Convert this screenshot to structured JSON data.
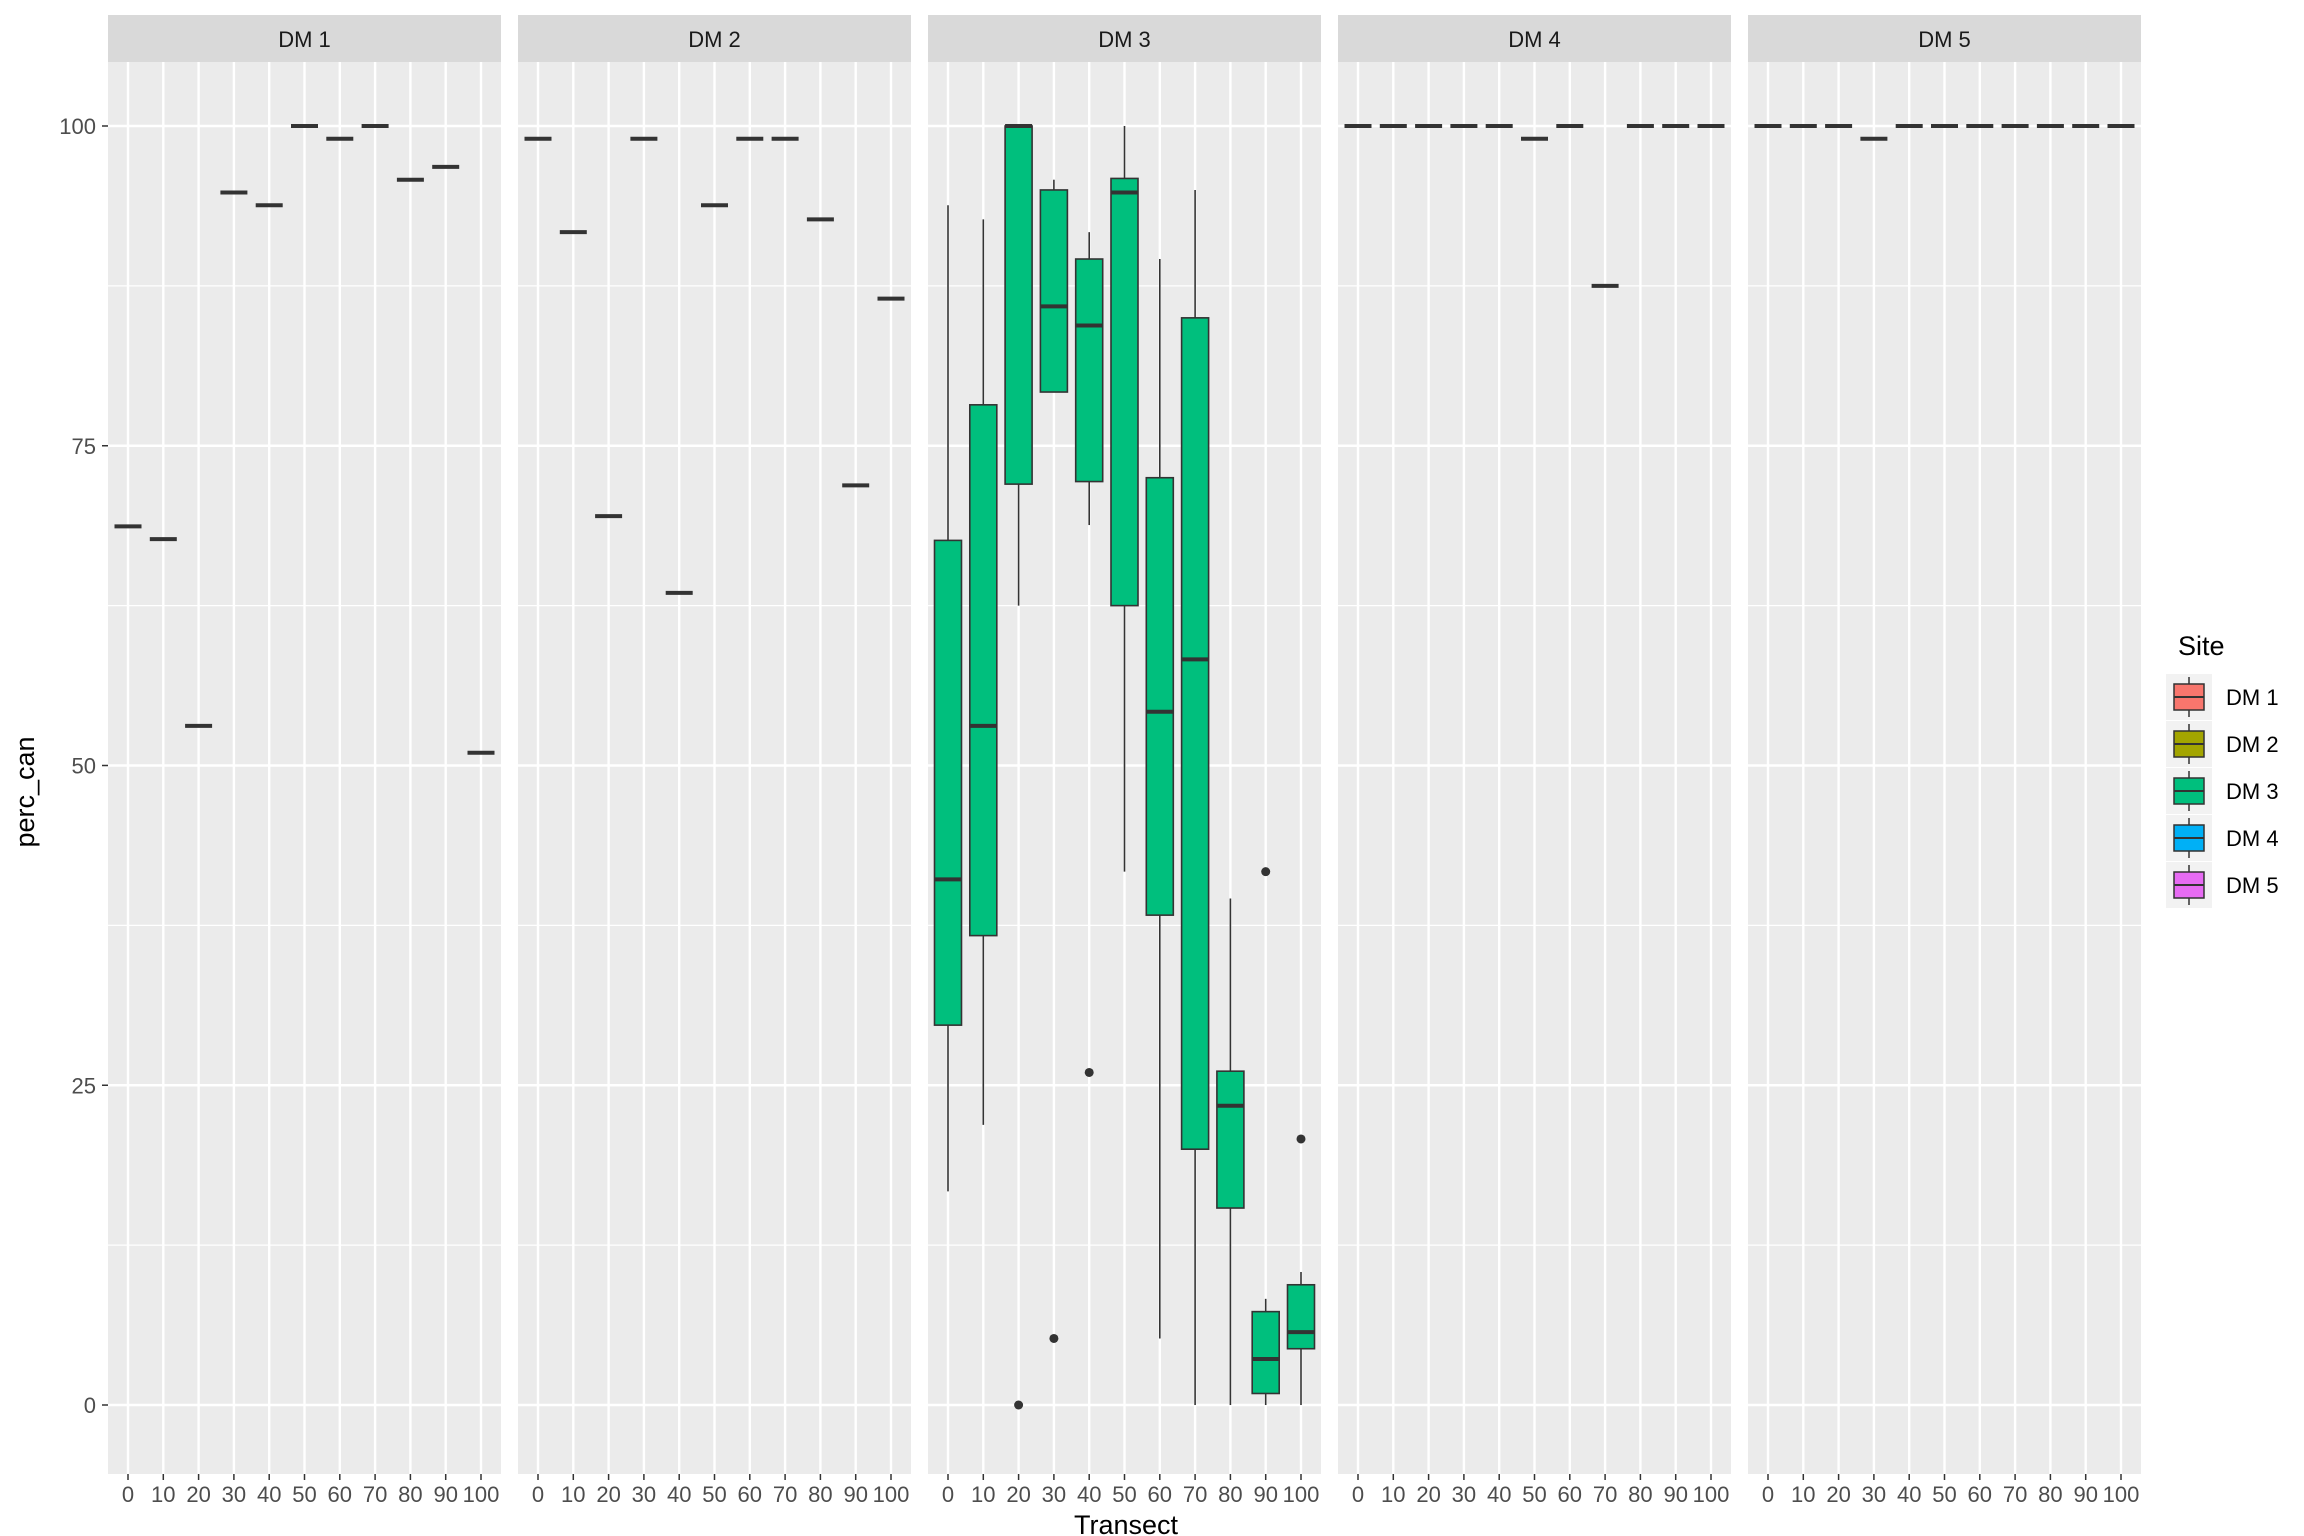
{
  "chart_data": {
    "type": "boxplot",
    "xlabel": "Transect",
    "ylabel": "perc_can",
    "ylim": [
      -5,
      105
    ],
    "y_ticks": [
      0,
      25,
      50,
      75,
      100
    ],
    "categories": [
      "0",
      "10",
      "20",
      "30",
      "40",
      "50",
      "60",
      "70",
      "80",
      "90",
      "100"
    ],
    "grid": true,
    "legend": {
      "title": "Site",
      "position": "right",
      "entries": [
        {
          "label": "DM 1",
          "color": "#F8766D"
        },
        {
          "label": "DM 2",
          "color": "#A3A500"
        },
        {
          "label": "DM 3",
          "color": "#00BF7D"
        },
        {
          "label": "DM 4",
          "color": "#00B0F6"
        },
        {
          "label": "DM 5",
          "color": "#E76BF3"
        }
      ]
    },
    "panels": [
      {
        "name": "DM 1",
        "boxes": [
          {
            "x": "0",
            "lower": 68.7,
            "q1": 68.7,
            "median": 68.7,
            "q3": 68.7,
            "upper": 68.7,
            "outliers": []
          },
          {
            "x": "10",
            "lower": 67.7,
            "q1": 67.7,
            "median": 67.7,
            "q3": 67.7,
            "upper": 67.7,
            "outliers": []
          },
          {
            "x": "20",
            "lower": 53.1,
            "q1": 53.1,
            "median": 53.1,
            "q3": 53.1,
            "upper": 53.1,
            "outliers": []
          },
          {
            "x": "30",
            "lower": 94.8,
            "q1": 94.8,
            "median": 94.8,
            "q3": 94.8,
            "upper": 94.8,
            "outliers": []
          },
          {
            "x": "40",
            "lower": 93.8,
            "q1": 93.8,
            "median": 93.8,
            "q3": 93.8,
            "upper": 93.8,
            "outliers": []
          },
          {
            "x": "50",
            "lower": 100,
            "q1": 100,
            "median": 100,
            "q3": 100,
            "upper": 100,
            "outliers": []
          },
          {
            "x": "60",
            "lower": 99,
            "q1": 99,
            "median": 99,
            "q3": 99,
            "upper": 99,
            "outliers": []
          },
          {
            "x": "70",
            "lower": 100,
            "q1": 100,
            "median": 100,
            "q3": 100,
            "upper": 100,
            "outliers": []
          },
          {
            "x": "80",
            "lower": 95.8,
            "q1": 95.8,
            "median": 95.8,
            "q3": 95.8,
            "upper": 95.8,
            "outliers": []
          },
          {
            "x": "90",
            "lower": 96.8,
            "q1": 96.8,
            "median": 96.8,
            "q3": 96.8,
            "upper": 96.8,
            "outliers": []
          },
          {
            "x": "100",
            "lower": 51,
            "q1": 51,
            "median": 51,
            "q3": 51,
            "upper": 51,
            "outliers": []
          }
        ]
      },
      {
        "name": "DM 2",
        "boxes": [
          {
            "x": "0",
            "lower": 99,
            "q1": 99,
            "median": 99,
            "q3": 99,
            "upper": 99,
            "outliers": []
          },
          {
            "x": "10",
            "lower": 91.7,
            "q1": 91.7,
            "median": 91.7,
            "q3": 91.7,
            "upper": 91.7,
            "outliers": []
          },
          {
            "x": "20",
            "lower": 69.5,
            "q1": 69.5,
            "median": 69.5,
            "q3": 69.5,
            "upper": 69.5,
            "outliers": []
          },
          {
            "x": "30",
            "lower": 99,
            "q1": 99,
            "median": 99,
            "q3": 99,
            "upper": 99,
            "outliers": []
          },
          {
            "x": "40",
            "lower": 63.5,
            "q1": 63.5,
            "median": 63.5,
            "q3": 63.5,
            "upper": 63.5,
            "outliers": []
          },
          {
            "x": "50",
            "lower": 93.8,
            "q1": 93.8,
            "median": 93.8,
            "q3": 93.8,
            "upper": 93.8,
            "outliers": []
          },
          {
            "x": "60",
            "lower": 99,
            "q1": 99,
            "median": 99,
            "q3": 99,
            "upper": 99,
            "outliers": []
          },
          {
            "x": "70",
            "lower": 99,
            "q1": 99,
            "median": 99,
            "q3": 99,
            "upper": 99,
            "outliers": []
          },
          {
            "x": "80",
            "lower": 92.7,
            "q1": 92.7,
            "median": 92.7,
            "q3": 92.7,
            "upper": 92.7,
            "outliers": []
          },
          {
            "x": "90",
            "lower": 71.9,
            "q1": 71.9,
            "median": 71.9,
            "q3": 71.9,
            "upper": 71.9,
            "outliers": []
          },
          {
            "x": "100",
            "lower": 86.5,
            "q1": 86.5,
            "median": 86.5,
            "q3": 86.5,
            "upper": 86.5,
            "outliers": []
          }
        ]
      },
      {
        "name": "DM 3",
        "boxes": [
          {
            "x": "0",
            "lower": 16.7,
            "q1": 29.7,
            "median": 41.1,
            "q3": 67.6,
            "upper": 93.8,
            "outliers": []
          },
          {
            "x": "10",
            "lower": 21.9,
            "q1": 36.7,
            "median": 53.1,
            "q3": 78.2,
            "upper": 92.7,
            "outliers": []
          },
          {
            "x": "20",
            "lower": 62.5,
            "q1": 72.0,
            "median": 100,
            "q3": 100,
            "upper": 100,
            "outliers": [
              0
            ]
          },
          {
            "x": "30",
            "lower": 79.2,
            "q1": 79.2,
            "median": 85.9,
            "q3": 95.0,
            "upper": 95.8,
            "outliers": [
              5.2
            ]
          },
          {
            "x": "40",
            "lower": 68.8,
            "q1": 72.2,
            "median": 84.4,
            "q3": 89.6,
            "upper": 91.7,
            "outliers": [
              26.0
            ]
          },
          {
            "x": "50",
            "lower": 41.7,
            "q1": 62.5,
            "median": 94.8,
            "q3": 95.9,
            "upper": 100,
            "outliers": []
          },
          {
            "x": "60",
            "lower": 5.2,
            "q1": 38.3,
            "median": 54.2,
            "q3": 72.5,
            "upper": 89.6,
            "outliers": []
          },
          {
            "x": "70",
            "lower": 0,
            "q1": 20.0,
            "median": 58.3,
            "q3": 85.0,
            "upper": 95.0,
            "outliers": []
          },
          {
            "x": "80",
            "lower": 0,
            "q1": 15.4,
            "median": 23.4,
            "q3": 26.1,
            "upper": 39.6,
            "outliers": []
          },
          {
            "x": "90",
            "lower": 0,
            "q1": 0.9,
            "median": 3.6,
            "q3": 7.3,
            "upper": 8.3,
            "outliers": [
              41.7
            ]
          },
          {
            "x": "100",
            "lower": 0,
            "q1": 4.4,
            "median": 5.7,
            "q3": 9.4,
            "upper": 10.4,
            "outliers": [
              20.8
            ]
          }
        ]
      },
      {
        "name": "DM 4",
        "boxes": [
          {
            "x": "0",
            "lower": 100,
            "q1": 100,
            "median": 100,
            "q3": 100,
            "upper": 100,
            "outliers": []
          },
          {
            "x": "10",
            "lower": 100,
            "q1": 100,
            "median": 100,
            "q3": 100,
            "upper": 100,
            "outliers": []
          },
          {
            "x": "20",
            "lower": 100,
            "q1": 100,
            "median": 100,
            "q3": 100,
            "upper": 100,
            "outliers": []
          },
          {
            "x": "30",
            "lower": 100,
            "q1": 100,
            "median": 100,
            "q3": 100,
            "upper": 100,
            "outliers": []
          },
          {
            "x": "40",
            "lower": 100,
            "q1": 100,
            "median": 100,
            "q3": 100,
            "upper": 100,
            "outliers": []
          },
          {
            "x": "50",
            "lower": 99,
            "q1": 99,
            "median": 99,
            "q3": 99,
            "upper": 99,
            "outliers": []
          },
          {
            "x": "60",
            "lower": 100,
            "q1": 100,
            "median": 100,
            "q3": 100,
            "upper": 100,
            "outliers": []
          },
          {
            "x": "70",
            "lower": 87.5,
            "q1": 87.5,
            "median": 87.5,
            "q3": 87.5,
            "upper": 87.5,
            "outliers": []
          },
          {
            "x": "80",
            "lower": 100,
            "q1": 100,
            "median": 100,
            "q3": 100,
            "upper": 100,
            "outliers": []
          },
          {
            "x": "90",
            "lower": 100,
            "q1": 100,
            "median": 100,
            "q3": 100,
            "upper": 100,
            "outliers": []
          },
          {
            "x": "100",
            "lower": 100,
            "q1": 100,
            "median": 100,
            "q3": 100,
            "upper": 100,
            "outliers": []
          }
        ]
      },
      {
        "name": "DM 5",
        "boxes": [
          {
            "x": "0",
            "lower": 100,
            "q1": 100,
            "median": 100,
            "q3": 100,
            "upper": 100,
            "outliers": []
          },
          {
            "x": "10",
            "lower": 100,
            "q1": 100,
            "median": 100,
            "q3": 100,
            "upper": 100,
            "outliers": []
          },
          {
            "x": "20",
            "lower": 100,
            "q1": 100,
            "median": 100,
            "q3": 100,
            "upper": 100,
            "outliers": []
          },
          {
            "x": "30",
            "lower": 99,
            "q1": 99,
            "median": 99,
            "q3": 99,
            "upper": 99,
            "outliers": []
          },
          {
            "x": "40",
            "lower": 100,
            "q1": 100,
            "median": 100,
            "q3": 100,
            "upper": 100,
            "outliers": []
          },
          {
            "x": "50",
            "lower": 100,
            "q1": 100,
            "median": 100,
            "q3": 100,
            "upper": 100,
            "outliers": []
          },
          {
            "x": "60",
            "lower": 100,
            "q1": 100,
            "median": 100,
            "q3": 100,
            "upper": 100,
            "outliers": []
          },
          {
            "x": "70",
            "lower": 100,
            "q1": 100,
            "median": 100,
            "q3": 100,
            "upper": 100,
            "outliers": []
          },
          {
            "x": "80",
            "lower": 100,
            "q1": 100,
            "median": 100,
            "q3": 100,
            "upper": 100,
            "outliers": []
          },
          {
            "x": "90",
            "lower": 100,
            "q1": 100,
            "median": 100,
            "q3": 100,
            "upper": 100,
            "outliers": []
          },
          {
            "x": "100",
            "lower": 100,
            "q1": 100,
            "median": 100,
            "q3": 100,
            "upper": 100,
            "outliers": []
          }
        ]
      }
    ]
  }
}
